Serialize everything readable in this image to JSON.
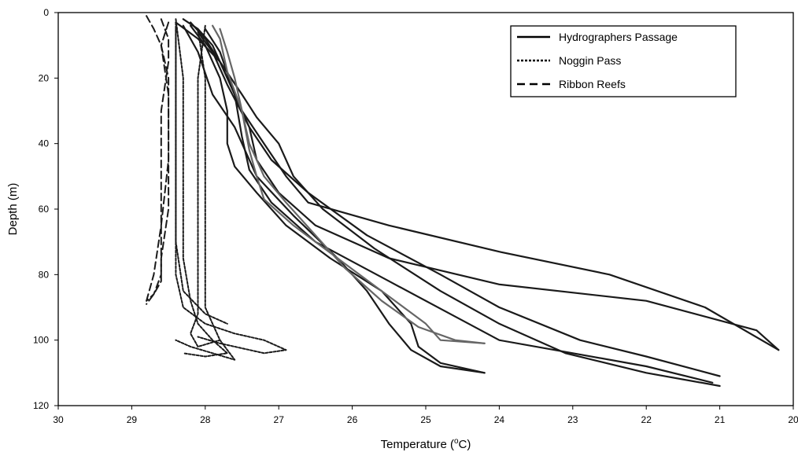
{
  "chart_data": {
    "type": "line",
    "title": "",
    "xlabel": "Temperature (°C)",
    "xlabel_parts": {
      "main": "Temperature (",
      "sup": "o",
      "unit": "C)"
    },
    "ylabel": "Depth (m)",
    "xlim": [
      30,
      20
    ],
    "ylim": [
      0,
      120
    ],
    "x_reversed": true,
    "y_reversed": true,
    "x_ticks": [
      "30",
      "29",
      "28",
      "27",
      "26",
      "25",
      "24",
      "23",
      "22",
      "21",
      "20"
    ],
    "y_ticks": [
      "0",
      "20",
      "40",
      "60",
      "80",
      "100",
      "120"
    ],
    "grid": false,
    "legend_position": "top-right",
    "legend": [
      {
        "name": "Hydrographers Passage",
        "style": "solid"
      },
      {
        "name": "Noggin Pass",
        "style": "dotted"
      },
      {
        "name": "Ribbon Reefs",
        "style": "dashed"
      }
    ],
    "series": [
      {
        "group": "Hydrographers Passage",
        "color": "#1a1a1a",
        "points": [
          [
            28.3,
            2
          ],
          [
            28.1,
            5
          ],
          [
            27.9,
            10
          ],
          [
            27.7,
            20
          ],
          [
            27.5,
            30
          ],
          [
            27.2,
            40
          ],
          [
            26.9,
            50
          ],
          [
            26.6,
            58
          ],
          [
            25.5,
            65
          ],
          [
            24.0,
            73
          ],
          [
            22.5,
            80
          ],
          [
            21.2,
            90
          ],
          [
            20.2,
            103
          ]
        ]
      },
      {
        "group": "Hydrographers Passage",
        "color": "#1a1a1a",
        "points": [
          [
            28.2,
            3
          ],
          [
            28.0,
            8
          ],
          [
            27.8,
            15
          ],
          [
            27.6,
            25
          ],
          [
            27.4,
            35
          ],
          [
            27.3,
            45
          ],
          [
            27.0,
            55
          ],
          [
            26.5,
            65
          ],
          [
            25.5,
            75
          ],
          [
            24.0,
            83
          ],
          [
            22.0,
            88
          ],
          [
            20.5,
            97
          ],
          [
            20.2,
            103
          ]
        ]
      },
      {
        "group": "Hydrographers Passage",
        "color": "#1a1a1a",
        "points": [
          [
            28.2,
            4
          ],
          [
            28.0,
            10
          ],
          [
            27.8,
            20
          ],
          [
            27.7,
            30
          ],
          [
            27.7,
            40
          ],
          [
            27.6,
            47
          ],
          [
            27.3,
            55
          ],
          [
            26.9,
            65
          ],
          [
            26.3,
            75
          ],
          [
            25.6,
            85
          ],
          [
            25.2,
            95
          ],
          [
            25.1,
            102
          ],
          [
            24.8,
            107
          ],
          [
            24.2,
            110
          ]
        ]
      },
      {
        "group": "Hydrographers Passage",
        "color": "#1a1a1a",
        "points": [
          [
            28.3,
            4
          ],
          [
            28.1,
            12
          ],
          [
            27.9,
            25
          ],
          [
            27.6,
            35
          ],
          [
            27.3,
            50
          ],
          [
            26.8,
            62
          ],
          [
            26.2,
            75
          ],
          [
            25.8,
            85
          ],
          [
            25.5,
            95
          ],
          [
            25.2,
            103
          ],
          [
            24.8,
            108
          ],
          [
            24.2,
            110
          ]
        ]
      },
      {
        "group": "Hydrographers Passage",
        "color": "#1a1a1a",
        "points": [
          [
            28.0,
            5
          ],
          [
            27.8,
            12
          ],
          [
            27.6,
            25
          ],
          [
            27.5,
            38
          ],
          [
            27.4,
            48
          ],
          [
            27.1,
            58
          ],
          [
            26.5,
            70
          ],
          [
            25.5,
            82
          ],
          [
            24.5,
            94
          ],
          [
            24.0,
            100
          ],
          [
            23.0,
            104
          ],
          [
            22.0,
            108
          ],
          [
            21.1,
            113
          ]
        ]
      },
      {
        "group": "Hydrographers Passage",
        "color": "#1a1a1a",
        "points": [
          [
            28.1,
            6
          ],
          [
            27.9,
            12
          ],
          [
            27.7,
            22
          ],
          [
            27.4,
            35
          ],
          [
            27.1,
            45
          ],
          [
            26.6,
            55
          ],
          [
            25.8,
            68
          ],
          [
            24.8,
            80
          ],
          [
            24.0,
            90
          ],
          [
            22.9,
            100
          ],
          [
            22.0,
            105
          ],
          [
            21.0,
            111
          ]
        ]
      },
      {
        "group": "Hydrographers Passage",
        "color": "#1a1a1a",
        "points": [
          [
            28.4,
            3
          ],
          [
            28.1,
            8
          ],
          [
            27.8,
            15
          ],
          [
            27.5,
            25
          ],
          [
            27.3,
            32
          ],
          [
            27.0,
            40
          ],
          [
            26.8,
            50
          ],
          [
            26.4,
            60
          ],
          [
            25.7,
            72
          ],
          [
            24.8,
            85
          ],
          [
            24.0,
            95
          ],
          [
            23.1,
            104
          ],
          [
            22.0,
            110
          ],
          [
            21.0,
            114
          ]
        ]
      },
      {
        "group": "Hydrographers Passage",
        "color": "#666666",
        "points": [
          [
            27.9,
            4
          ],
          [
            27.8,
            8
          ],
          [
            27.7,
            18
          ],
          [
            27.5,
            30
          ],
          [
            27.4,
            42
          ],
          [
            27.3,
            50
          ],
          [
            27.2,
            57
          ],
          [
            26.8,
            65
          ],
          [
            26.2,
            75
          ],
          [
            25.6,
            85
          ],
          [
            25.0,
            95
          ],
          [
            24.8,
            100
          ],
          [
            24.2,
            101
          ]
        ]
      },
      {
        "group": "Hydrographers Passage",
        "color": "#666666",
        "points": [
          [
            27.8,
            5
          ],
          [
            27.7,
            12
          ],
          [
            27.6,
            20
          ],
          [
            27.5,
            30
          ],
          [
            27.4,
            40
          ],
          [
            27.2,
            50
          ],
          [
            26.9,
            58
          ],
          [
            26.5,
            68
          ],
          [
            26.1,
            78
          ],
          [
            25.6,
            88
          ],
          [
            25.1,
            96
          ],
          [
            24.6,
            100
          ],
          [
            24.2,
            101
          ]
        ]
      },
      {
        "group": "Noggin Pass",
        "color": "#1a1a1a",
        "points": [
          [
            28.4,
            3
          ],
          [
            28.4,
            20
          ],
          [
            28.4,
            40
          ],
          [
            28.4,
            60
          ],
          [
            28.4,
            80
          ],
          [
            28.3,
            90
          ],
          [
            28.0,
            95
          ],
          [
            27.6,
            98
          ],
          [
            27.2,
            100
          ],
          [
            26.9,
            103
          ],
          [
            27.2,
            104
          ],
          [
            27.8,
            101
          ],
          [
            28.1,
            99
          ]
        ]
      },
      {
        "group": "Noggin Pass",
        "color": "#1a1a1a",
        "points": [
          [
            28.1,
            5
          ],
          [
            28.0,
            20
          ],
          [
            28.0,
            40
          ],
          [
            28.0,
            60
          ],
          [
            28.0,
            80
          ],
          [
            28.0,
            90
          ],
          [
            27.9,
            95
          ],
          [
            27.8,
            100
          ],
          [
            27.7,
            103
          ],
          [
            27.6,
            106
          ],
          [
            27.9,
            104
          ],
          [
            28.2,
            102
          ],
          [
            28.4,
            100
          ]
        ]
      },
      {
        "group": "Noggin Pass",
        "color": "#1a1a1a",
        "points": [
          [
            28.4,
            2
          ],
          [
            28.3,
            20
          ],
          [
            28.3,
            40
          ],
          [
            28.3,
            60
          ],
          [
            28.3,
            75
          ],
          [
            28.2,
            88
          ],
          [
            28.1,
            95
          ],
          [
            27.9,
            100
          ],
          [
            27.7,
            104
          ],
          [
            28.0,
            105
          ],
          [
            28.3,
            104
          ]
        ]
      },
      {
        "group": "Noggin Pass",
        "color": "#1a1a1a",
        "points": [
          [
            28.0,
            4
          ],
          [
            28.1,
            20
          ],
          [
            28.1,
            40
          ],
          [
            28.1,
            60
          ],
          [
            28.1,
            80
          ],
          [
            28.1,
            92
          ],
          [
            28.2,
            98
          ],
          [
            28.1,
            102
          ],
          [
            27.8,
            100
          ]
        ]
      },
      {
        "group": "Noggin Pass",
        "color": "#1a1a1a",
        "points": [
          [
            28.4,
            5
          ],
          [
            28.4,
            30
          ],
          [
            28.4,
            50
          ],
          [
            28.4,
            70
          ],
          [
            28.3,
            85
          ],
          [
            28.0,
            92
          ],
          [
            27.7,
            95
          ]
        ]
      },
      {
        "group": "Ribbon Reefs",
        "color": "#1a1a1a",
        "points": [
          [
            28.8,
            1
          ],
          [
            28.7,
            5
          ],
          [
            28.6,
            10
          ],
          [
            28.5,
            20
          ],
          [
            28.5,
            40
          ],
          [
            28.5,
            60
          ],
          [
            28.6,
            75
          ],
          [
            28.6,
            82
          ],
          [
            28.7,
            86
          ],
          [
            28.8,
            89
          ]
        ]
      },
      {
        "group": "Ribbon Reefs",
        "color": "#1a1a1a",
        "points": [
          [
            28.6,
            2
          ],
          [
            28.5,
            8
          ],
          [
            28.5,
            15
          ],
          [
            28.6,
            30
          ],
          [
            28.6,
            50
          ],
          [
            28.6,
            70
          ],
          [
            28.6,
            80
          ],
          [
            28.7,
            86
          ],
          [
            28.8,
            88
          ]
        ]
      },
      {
        "group": "Ribbon Reefs",
        "color": "#1a1a1a",
        "points": [
          [
            28.5,
            3
          ],
          [
            28.6,
            10
          ],
          [
            28.5,
            25
          ],
          [
            28.5,
            45
          ],
          [
            28.6,
            65
          ],
          [
            28.7,
            80
          ],
          [
            28.8,
            88
          ]
        ]
      }
    ]
  }
}
